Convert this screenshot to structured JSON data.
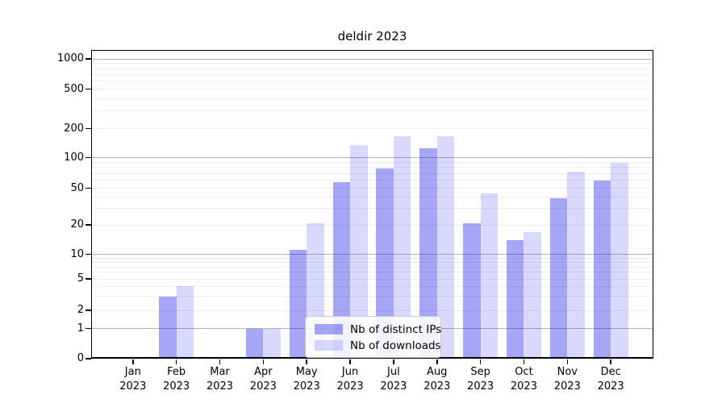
{
  "chart_data": {
    "type": "bar",
    "title": "deldir 2023",
    "categories": [
      "Jan 2023",
      "Feb 2023",
      "Mar 2023",
      "Apr 2023",
      "May 2023",
      "Jun 2023",
      "Jul 2023",
      "Aug 2023",
      "Sep 2023",
      "Oct 2023",
      "Nov 2023",
      "Dec 2023"
    ],
    "series": [
      {
        "name": "Nb of distinct IPs",
        "color": "#0000ee",
        "alpha": 0.35,
        "values": [
          0,
          3,
          0,
          1,
          11,
          57,
          78,
          125,
          21,
          14,
          39,
          60
        ]
      },
      {
        "name": "Nb of downloads",
        "color": "#0000ee",
        "alpha": 0.15,
        "values": [
          0,
          4,
          0,
          1,
          21,
          135,
          165,
          167,
          44,
          17,
          73,
          89
        ]
      }
    ],
    "yscale": "symlog",
    "yticks": [
      0,
      1,
      2,
      5,
      10,
      20,
      50,
      100,
      200,
      500,
      1000
    ],
    "ylim": [
      0,
      1400
    ],
    "xlabel": "",
    "ylabel": "",
    "grid": true,
    "legend_position": "lower center"
  },
  "colors": {
    "background": "#ffffff",
    "axis": "#000000",
    "grid_minor": "#ebebeb",
    "grid_major": "#b3b3b3",
    "bar_distinct_ips": "#a6a6f9",
    "bar_downloads": "#d9d9fc",
    "legend_border": "#c9c9c9"
  }
}
